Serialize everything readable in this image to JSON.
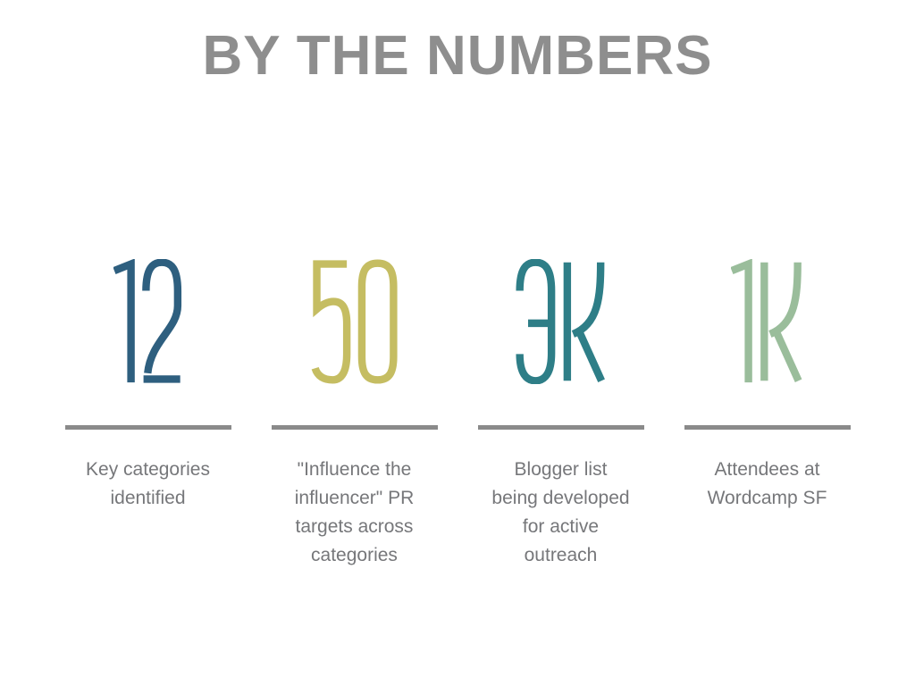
{
  "slide": {
    "title": "BY THE NUMBERS"
  },
  "colors": {
    "background": "#ffffff",
    "title": "#8e8e8e",
    "divider": "#8a8a8a",
    "label": "#76777a"
  },
  "stats": [
    {
      "value": "12",
      "color": "#2e5f7f",
      "label_lines": [
        "Key categories",
        "identified"
      ]
    },
    {
      "value": "50",
      "color": "#c5bd62",
      "label_lines": [
        "\"Influence the",
        "influencer\" PR",
        "targets across",
        "categories"
      ]
    },
    {
      "value": "3K",
      "color": "#2e7e87",
      "label_lines": [
        "Blogger list",
        "being developed",
        "for active",
        "outreach"
      ]
    },
    {
      "value": "1K",
      "color": "#9abd9b",
      "label_lines": [
        "Attendees at",
        "Wordcamp SF"
      ]
    }
  ]
}
